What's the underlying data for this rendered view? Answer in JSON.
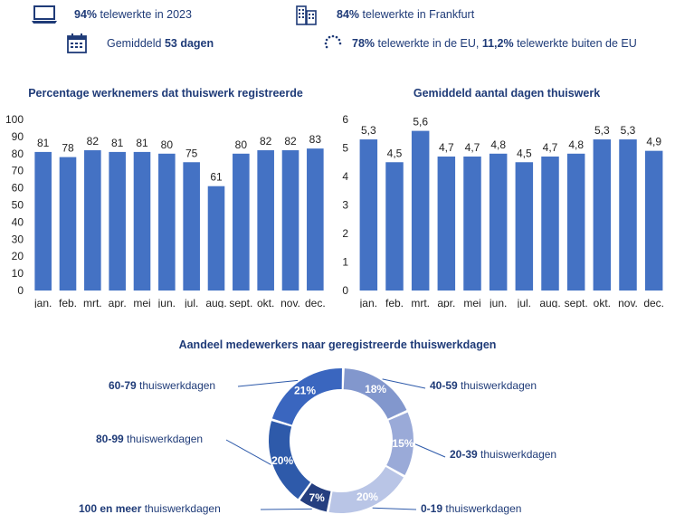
{
  "kpis": [
    {
      "icon": "laptop-icon",
      "bold": "94%",
      "text": " telewerkte in 2023"
    },
    {
      "icon": "office-building-icon",
      "bold": "84%",
      "text": " telewerkte in Frankfurt"
    },
    {
      "icon": "calendar-icon",
      "text": "Gemiddeld ",
      "bold": "53 dagen"
    },
    {
      "icon": "eu-stars-icon",
      "bold": "78%",
      "text": " telewerkte in de EU, ",
      "bold2": "11,2%",
      "text2": " telewerkte buiten de EU"
    }
  ],
  "colors": {
    "bar": "#4472c4",
    "title": "#1f3b78"
  },
  "chart_data": [
    {
      "type": "bar",
      "title": "Percentage werknemers dat thuiswerk registreerde",
      "categories": [
        "jan.",
        "feb.",
        "mrt.",
        "apr.",
        "mei",
        "jun.",
        "jul.",
        "aug.",
        "sept.",
        "okt.",
        "nov.",
        "dec."
      ],
      "values": [
        81,
        78,
        82,
        81,
        81,
        80,
        75,
        61,
        80,
        82,
        82,
        83
      ],
      "value_labels": [
        "81",
        "78",
        "82",
        "81",
        "81",
        "80",
        "75",
        "61",
        "80",
        "82",
        "82",
        "83"
      ],
      "ylim": [
        0,
        100
      ],
      "yticks": [
        0,
        10,
        20,
        30,
        40,
        50,
        60,
        70,
        80,
        90,
        100
      ],
      "grid": false
    },
    {
      "type": "bar",
      "title": "Gemiddeld aantal dagen thuiswerk",
      "categories": [
        "jan.",
        "feb.",
        "mrt.",
        "apr.",
        "mei",
        "jun.",
        "jul.",
        "aug.",
        "sept.",
        "okt.",
        "nov.",
        "dec."
      ],
      "values": [
        5.3,
        4.5,
        5.6,
        4.7,
        4.7,
        4.8,
        4.5,
        4.7,
        4.8,
        5.3,
        5.3,
        4.9
      ],
      "value_labels": [
        "5,3",
        "4,5",
        "5,6",
        "4,7",
        "4,7",
        "4,8",
        "4,5",
        "4,7",
        "4,8",
        "5,3",
        "5,3",
        "4,9"
      ],
      "ylim": [
        0,
        6
      ],
      "yticks": [
        0,
        1,
        2,
        3,
        4,
        5,
        6
      ],
      "grid": false
    },
    {
      "type": "pie",
      "title": "Aandeel medewerkers naar geregistreerde thuiswerkdagen",
      "donut": true,
      "slices": [
        {
          "bold": "40-59",
          "label": " thuiswerkdagen",
          "value": 18,
          "pct": "18%",
          "color": "#8297cd"
        },
        {
          "bold": "20-39",
          "label": " thuiswerkdagen",
          "value": 15,
          "pct": "15%",
          "color": "#9aaad8"
        },
        {
          "bold": "0-19",
          "label": " thuiswerkdagen",
          "value": 20,
          "pct": "20%",
          "color": "#b9c5e6"
        },
        {
          "bold": "100 en meer",
          "label": " thuiswerkdagen",
          "value": 7,
          "pct": "7%",
          "color": "#253f80"
        },
        {
          "bold": "80-99",
          "label": " thuiswerkdagen",
          "value": 20,
          "pct": "20%",
          "color": "#2e5aaa"
        },
        {
          "bold": "60-79",
          "label": " thuiswerkdagen",
          "value": 21,
          "pct": "21%",
          "color": "#3a66bf"
        }
      ]
    }
  ]
}
